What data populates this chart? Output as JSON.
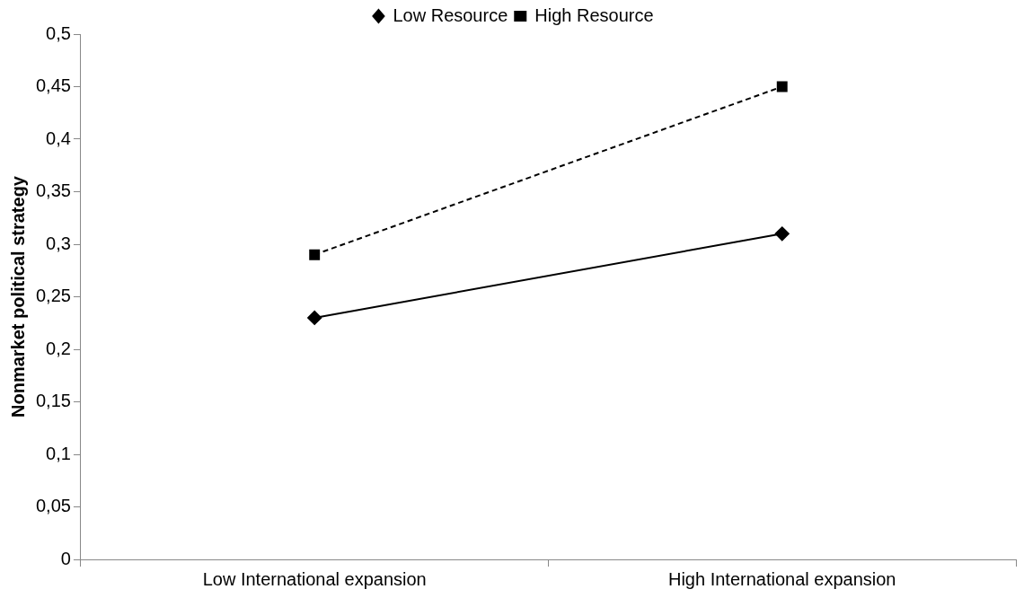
{
  "chart_data": {
    "type": "line",
    "ylabel": "Nonmarket political strategy",
    "categories": [
      "Low International expansion",
      "High International expansion"
    ],
    "series": [
      {
        "name": "Low Resource",
        "color": "#000000",
        "values": [
          0.23,
          0.31
        ],
        "marker": "diamond",
        "line_style": "solid"
      },
      {
        "name": "High Resource",
        "color": "#000000",
        "values": [
          0.29,
          0.45
        ],
        "marker": "square",
        "line_style": "dashed"
      }
    ],
    "ylim": [
      0,
      0.5
    ],
    "yticks": [
      0,
      {
        "value": 0.05,
        "label": "0,05"
      },
      {
        "value": 0.1,
        "label": "0,1"
      },
      {
        "value": 0.15,
        "label": "0,15"
      },
      {
        "value": 0.2,
        "label": "0,2"
      },
      {
        "value": 0.25,
        "label": "0,25"
      },
      {
        "value": 0.3,
        "label": "0,3"
      },
      {
        "value": 0.35,
        "label": "0,35"
      },
      {
        "value": 0.4,
        "label": "0,4"
      },
      {
        "value": 0.45,
        "label": "0,45"
      },
      {
        "value": 0.5,
        "label": "0,5"
      }
    ],
    "grid": false,
    "legend": "top"
  }
}
